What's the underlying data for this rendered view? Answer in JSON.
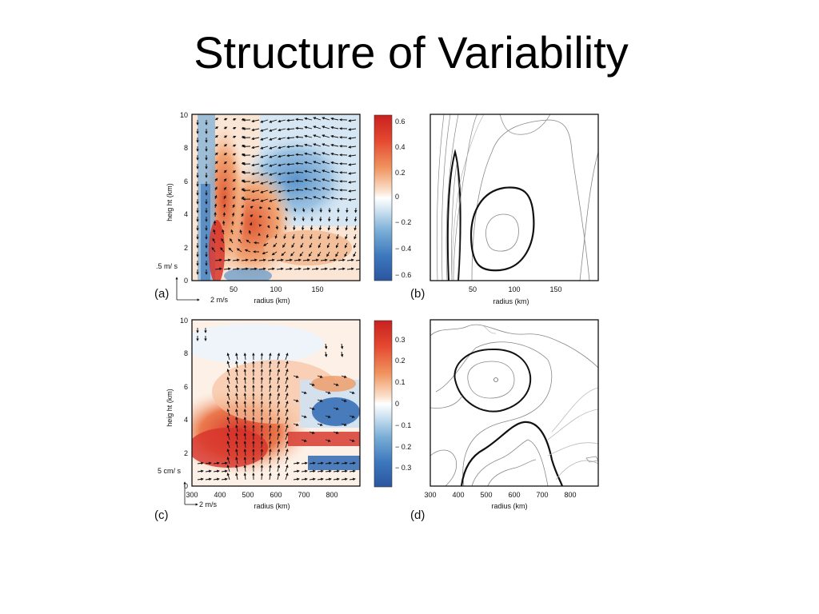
{
  "slide": {
    "title": "Structure of Variability"
  },
  "panels": {
    "a": {
      "label": "(a)",
      "ylabel": "heig ht  (km)",
      "xlabel": "radius  (km)",
      "y_ticks": [
        "0",
        "2",
        "4",
        "6",
        "8",
        "10"
      ],
      "x_ticks": [
        "50",
        "100",
        "150"
      ],
      "vector_scale_vertical": ".5  m/ s",
      "vector_scale_horizontal": "2  m/s",
      "colorbar_ticks": [
        "0.6",
        "0.4",
        "0.2",
        "0",
        "− 0.2",
        "− 0.4",
        "− 0.6"
      ]
    },
    "b": {
      "label": "(b)",
      "xlabel": "radius  (km)",
      "x_ticks": [
        "50",
        "100",
        "150"
      ]
    },
    "c": {
      "label": "(c)",
      "ylabel": "heig ht  (km)",
      "xlabel": "radius  (km)",
      "y_ticks": [
        "0",
        "2",
        "4",
        "6",
        "8",
        "10"
      ],
      "x_ticks": [
        "300",
        "400",
        "500",
        "600",
        "700",
        "800"
      ],
      "vector_scale_vertical": "5  cm/ s",
      "vector_scale_horizontal": "2  m/s",
      "colorbar_ticks": [
        "0.3",
        "0.2",
        "0.1",
        "0",
        "− 0.1",
        "− 0.2",
        "− 0.3"
      ]
    },
    "d": {
      "label": "(d)",
      "xlabel": "radius  (km)",
      "x_ticks": [
        "300",
        "400",
        "500",
        "600",
        "700",
        "800"
      ]
    }
  },
  "colors": {
    "warm": "#d7322a",
    "cool": "#2f69b3",
    "neutral": "#ffffff"
  }
}
